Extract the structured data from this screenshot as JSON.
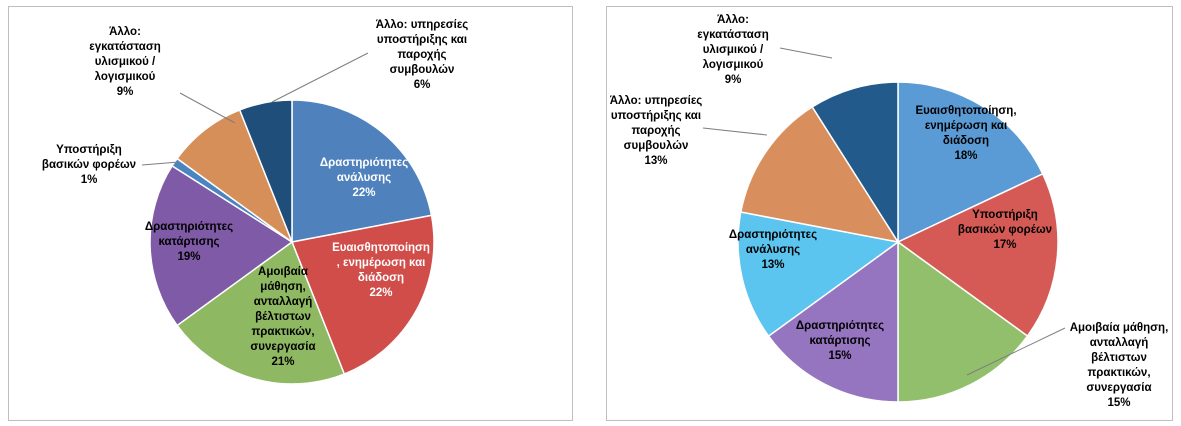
{
  "chart_data": [
    {
      "type": "pie",
      "title": "",
      "slices": [
        {
          "label": "Δραστηριότητες ανάλυσης",
          "value": 22,
          "pct": "22%",
          "color": "#4f81bd"
        },
        {
          "label": "Ευαισθητοποίηση, ενημέρωση και διάδοση",
          "value": 22,
          "pct": "22%",
          "color": "#d04d4a"
        },
        {
          "label": "Αμοιβαία μάθηση, ανταλλαγή βέλτιστων πρακτικών, συνεργασία",
          "value": 21,
          "pct": "21%",
          "color": "#8eb861"
        },
        {
          "label": "Δραστηριότητες κατάρτισης",
          "value": 19,
          "pct": "19%",
          "color": "#7e5aa7"
        },
        {
          "label": "Υποστήριξη βασικών φορέων",
          "value": 1,
          "pct": "1%",
          "color": "#4b85c1"
        },
        {
          "label": "Άλλο: εγκατάσταση υλισμικού / λογισμικού",
          "value": 9,
          "pct": "9%",
          "color": "#d78f5a"
        },
        {
          "label": "Άλλο: υπηρεσίες υποστήριξης και παροχής συμβουλών",
          "value": 6,
          "pct": "6%",
          "color": "#1f4e7a"
        }
      ]
    },
    {
      "type": "pie",
      "title": "",
      "slices": [
        {
          "label": "Ευαισθητοποίηση, ενημέρωση και διάδοση",
          "value": 18,
          "pct": "18%",
          "color": "#5b9bd5"
        },
        {
          "label": "Υποστήριξη βασικών φορέων",
          "value": 17,
          "pct": "17%",
          "color": "#d55a55"
        },
        {
          "label": "Αμοιβαία μάθηση, ανταλλαγή βέλτιστων πρακτικών, συνεργασία",
          "value": 15,
          "pct": "15%",
          "color": "#92bf6b"
        },
        {
          "label": "Δραστηριότητες κατάρτισης",
          "value": 15,
          "pct": "15%",
          "color": "#9574c0"
        },
        {
          "label": "Δραστηριότητες ανάλυσης",
          "value": 13,
          "pct": "13%",
          "color": "#5bc4ef"
        },
        {
          "label": "Άλλο: υπηρεσίες υποστήριξης και παροχής συμβουλών",
          "value": 13,
          "pct": "13%",
          "color": "#d98f5d"
        },
        {
          "label": "Άλλο: εγκατάσταση υλισμικού / λογισμικού",
          "value": 9,
          "pct": "9%",
          "color": "#235a8c"
        }
      ]
    }
  ],
  "label_lines": [
    [
      [
        "Δραστηριότητες",
        "ανάλυσης",
        "22%"
      ],
      [
        "Ευαισθητοποίηση",
        ", ενημέρωση και",
        "διάδοση",
        "22%"
      ],
      [
        "Αμοιβαία",
        "μάθηση,",
        "ανταλλαγή",
        "βέλτιστων",
        "πρακτικών,",
        "συνεργασία",
        "21%"
      ],
      [
        "Δραστηριότητες",
        "κατάρτισης",
        "19%"
      ],
      [
        "Υποστήριξη",
        "βασικών φορέων",
        "1%"
      ],
      [
        "Άλλο:",
        "εγκατάσταση",
        "υλισμικού /",
        "λογισμικού",
        "9%"
      ],
      [
        "Άλλο: υπηρεσίες",
        "υποστήριξης και",
        "παροχής",
        "συμβουλών",
        "6%"
      ]
    ],
    [
      [
        "Ευαισθητοποίηση,",
        "ενημέρωση και",
        "διάδοση",
        "18%"
      ],
      [
        "Υποστήριξη",
        "βασικών φορέων",
        "17%"
      ],
      [
        "Αμοιβαία μάθηση,",
        "ανταλλαγή",
        "βέλτιστων",
        "πρακτικών,",
        "συνεργασία",
        "15%"
      ],
      [
        "Δραστηριότητες",
        "κατάρτισης",
        "15%"
      ],
      [
        "Δραστηριότητες",
        "ανάλυσης",
        "13%"
      ],
      [
        "Άλλο: υπηρεσίες",
        "υποστήριξης και",
        "παροχής",
        "συμβουλών",
        "13%"
      ],
      [
        "Άλλο:",
        "εγκατάσταση",
        "υλισμικού /",
        "λογισμικού",
        "9%"
      ]
    ]
  ]
}
